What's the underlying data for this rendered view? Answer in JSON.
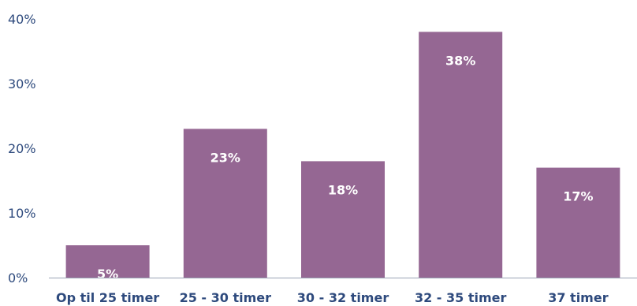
{
  "colors": {
    "bar": "#956793",
    "axis_text": "#2e4a7d",
    "baseline": "#9aa3b5",
    "data_label": "#ffffff"
  },
  "chart_data": {
    "type": "bar",
    "categories": [
      "Op til 25 timer",
      "25 - 30 timer",
      "30 - 32 timer",
      "32 - 35 timer",
      "37 timer"
    ],
    "values": [
      5,
      23,
      18,
      38,
      17
    ],
    "data_labels": [
      "5%",
      "23%",
      "18%",
      "38%",
      "17%"
    ],
    "yticks": [
      0,
      10,
      20,
      30,
      40
    ],
    "ytick_labels": [
      "0%",
      "10%",
      "20%",
      "30%",
      "40%"
    ],
    "ylim": [
      0,
      40
    ],
    "grid": false,
    "legend": "none"
  }
}
